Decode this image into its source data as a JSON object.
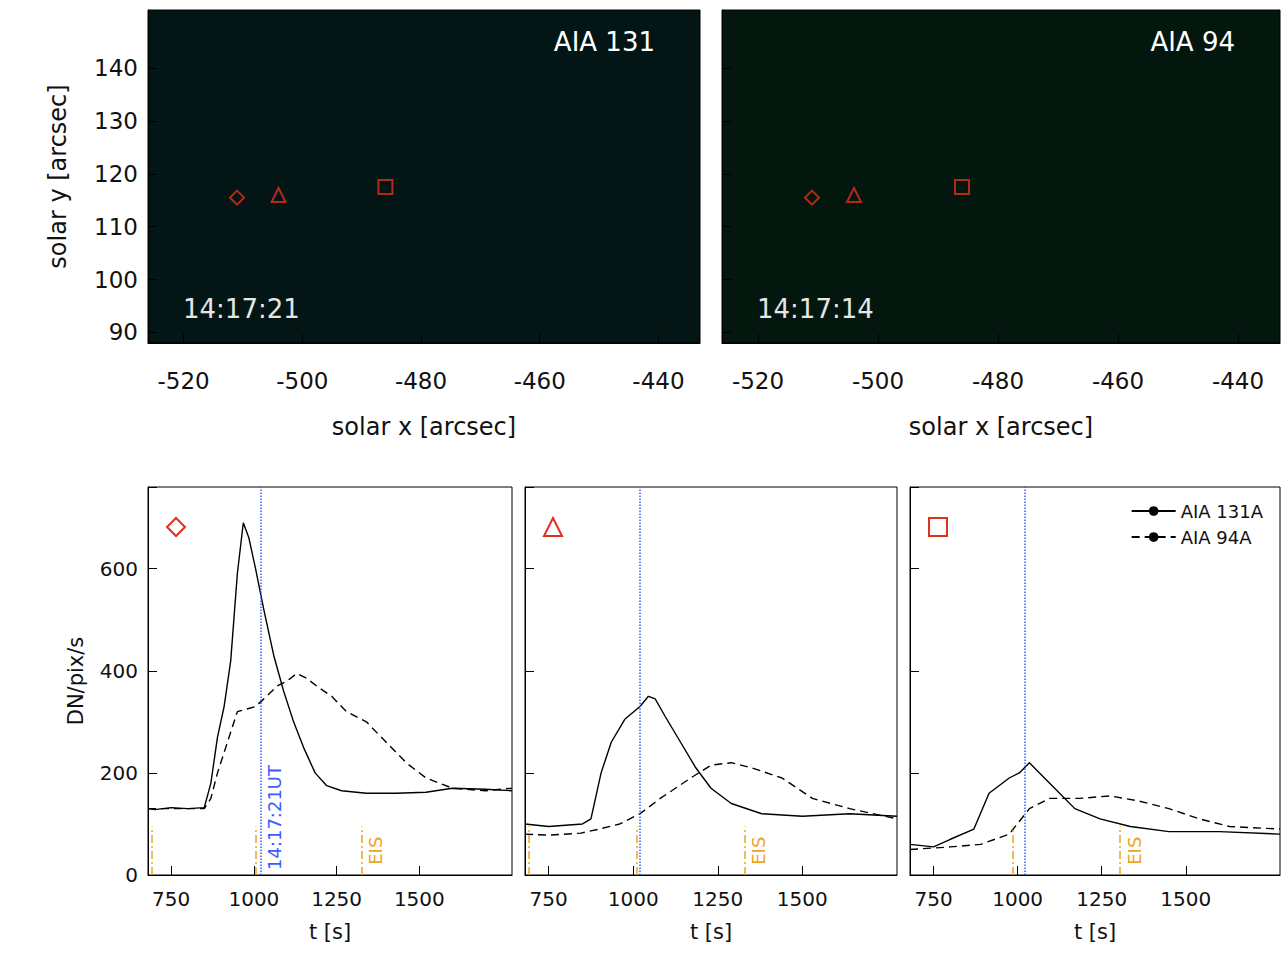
{
  "chart_data": [
    {
      "type": "scatter",
      "title": "AIA 131",
      "annotations": [
        "14:17:21"
      ],
      "xlabel": "solar x [arcsec]",
      "ylabel": "solar y [arcsec]",
      "xlim": [
        -526,
        -433
      ],
      "xticks": [
        -520,
        -500,
        -480,
        -460,
        -440
      ],
      "ylim": [
        88,
        151
      ],
      "yticks": [
        90,
        100,
        110,
        120,
        130,
        140
      ],
      "grid": false,
      "series": [
        {
          "marker": "diamond",
          "color": "#e0301e",
          "x": [
            -511
          ],
          "values": [
            115.5
          ]
        },
        {
          "marker": "triangle",
          "color": "#e0301e",
          "x": [
            -504
          ],
          "values": [
            116
          ]
        },
        {
          "marker": "square",
          "color": "#e0301e",
          "x": [
            -486
          ],
          "values": [
            117.5
          ]
        }
      ]
    },
    {
      "type": "scatter",
      "title": "AIA 94",
      "annotations": [
        "14:17:14"
      ],
      "xlabel": "solar x [arcsec]",
      "xlim": [
        -526,
        -433
      ],
      "xticks": [
        -520,
        -500,
        -480,
        -460,
        -440
      ],
      "ylim": [
        88,
        151
      ],
      "yticks": [
        90,
        100,
        110,
        120,
        130,
        140
      ],
      "grid": false,
      "tick_labels": "x",
      "series": [
        {
          "marker": "diamond",
          "color": "#e0301e",
          "x": [
            -511
          ],
          "values": [
            115.5
          ]
        },
        {
          "marker": "triangle",
          "color": "#e0301e",
          "x": [
            -504
          ],
          "values": [
            116
          ]
        },
        {
          "marker": "square",
          "color": "#e0301e",
          "x": [
            -486
          ],
          "values": [
            117.5
          ]
        }
      ]
    },
    {
      "type": "line",
      "marker": "diamond",
      "color": "#e0301e",
      "xlabel": "t [s]",
      "ylabel": "DN/pix/s",
      "xlim": [
        680,
        1780
      ],
      "xticks": [
        750,
        1000,
        1250,
        1500
      ],
      "ylim": [
        0,
        760
      ],
      "yticks": [
        0,
        200,
        400,
        600
      ],
      "grid": false,
      "vline": {
        "x": 1020,
        "label": "14:17:21UT"
      },
      "eis": {
        "x": [
          690,
          1005,
          1325
        ],
        "height": 95,
        "label": "EIS"
      },
      "series": [
        {
          "name": "AIA 131A",
          "color": "#000000",
          "line_style": "solid",
          "x": [
            680,
            700,
            750,
            800,
            850,
            870,
            890,
            910,
            930,
            950,
            968,
            985,
            1005,
            1030,
            1060,
            1090,
            1120,
            1150,
            1185,
            1220,
            1265,
            1340,
            1430,
            1520,
            1600,
            1700,
            1780
          ],
          "values": [
            130,
            128,
            132,
            130,
            132,
            180,
            270,
            330,
            420,
            590,
            690,
            660,
            600,
            520,
            430,
            360,
            300,
            250,
            200,
            175,
            165,
            160,
            160,
            162,
            170,
            168,
            165
          ]
        },
        {
          "name": "AIA 94A",
          "color": "#000000",
          "line_style": "dashed",
          "x": [
            680,
            750,
            850,
            870,
            890,
            920,
            950,
            1005,
            1030,
            1070,
            1100,
            1130,
            1160,
            1190,
            1235,
            1280,
            1340,
            1400,
            1460,
            1520,
            1600,
            1700,
            1780
          ],
          "values": [
            130,
            130,
            130,
            150,
            200,
            260,
            320,
            330,
            345,
            370,
            380,
            395,
            385,
            370,
            350,
            320,
            300,
            260,
            220,
            190,
            170,
            165,
            170
          ]
        }
      ]
    },
    {
      "type": "line",
      "marker": "triangle",
      "color": "#e0301e",
      "xlabel": "t [s]",
      "xlim": [
        680,
        1780
      ],
      "xticks": [
        750,
        1000,
        1250,
        1500
      ],
      "ylim": [
        0,
        760
      ],
      "yticks": [
        0,
        200,
        400,
        600
      ],
      "grid": false,
      "tick_labels": "x",
      "vline": {
        "x": 1020
      },
      "eis": {
        "x": [
          690,
          1010,
          1330
        ],
        "height": 95,
        "label": "EIS"
      },
      "series": [
        {
          "name": "AIA 131A",
          "color": "#000000",
          "line_style": "solid",
          "x": [
            680,
            750,
            850,
            875,
            905,
            935,
            975,
            1020,
            1045,
            1065,
            1095,
            1140,
            1185,
            1230,
            1290,
            1380,
            1500,
            1640,
            1780
          ],
          "values": [
            100,
            95,
            100,
            110,
            200,
            260,
            305,
            330,
            350,
            345,
            310,
            260,
            210,
            170,
            140,
            120,
            115,
            120,
            115
          ]
        },
        {
          "name": "AIA 94A",
          "color": "#000000",
          "line_style": "dashed",
          "x": [
            680,
            750,
            845,
            900,
            960,
            1020,
            1080,
            1170,
            1230,
            1290,
            1350,
            1440,
            1530,
            1640,
            1780
          ],
          "values": [
            80,
            78,
            82,
            90,
            100,
            120,
            150,
            190,
            215,
            220,
            210,
            190,
            150,
            130,
            110
          ]
        }
      ]
    },
    {
      "type": "line",
      "marker": "square",
      "color": "#e0301e",
      "xlabel": "t [s]",
      "xlim": [
        680,
        1780
      ],
      "xticks": [
        750,
        1000,
        1250,
        1500
      ],
      "ylim": [
        0,
        760
      ],
      "yticks": [
        0,
        200,
        400,
        600
      ],
      "grid": false,
      "tick_labels": "x",
      "legend": "top-right",
      "vline": {
        "x": 1020
      },
      "eis": {
        "x": [
          985,
          1305
        ],
        "height": 95,
        "label": "EIS"
      },
      "series": [
        {
          "name": "AIA 131A",
          "color": "#000000",
          "line_style": "solid",
          "x": [
            680,
            750,
            800,
            870,
            915,
            975,
            1005,
            1035,
            1065,
            1110,
            1170,
            1245,
            1335,
            1450,
            1600,
            1780
          ],
          "values": [
            60,
            55,
            70,
            90,
            160,
            190,
            200,
            220,
            200,
            170,
            130,
            110,
            95,
            85,
            85,
            80
          ]
        },
        {
          "name": "AIA 94A",
          "color": "#000000",
          "line_style": "dashed",
          "x": [
            680,
            800,
            890,
            975,
            1035,
            1095,
            1185,
            1275,
            1360,
            1450,
            1540,
            1630,
            1780
          ],
          "values": [
            50,
            55,
            60,
            80,
            130,
            150,
            150,
            155,
            145,
            130,
            110,
            95,
            90
          ]
        }
      ]
    }
  ]
}
